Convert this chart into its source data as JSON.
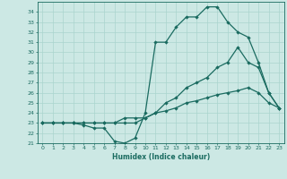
{
  "xlabel": "Humidex (Indice chaleur)",
  "background_color": "#cce8e4",
  "grid_color": "#aad4ce",
  "line_color": "#1a6b60",
  "xlim": [
    -0.5,
    23.5
  ],
  "ylim": [
    21,
    35
  ],
  "xticks": [
    0,
    1,
    2,
    3,
    4,
    5,
    6,
    7,
    8,
    9,
    10,
    11,
    12,
    13,
    14,
    15,
    16,
    17,
    18,
    19,
    20,
    21,
    22,
    23
  ],
  "yticks": [
    21,
    22,
    23,
    24,
    25,
    26,
    27,
    28,
    29,
    30,
    31,
    32,
    33,
    34
  ],
  "line1_x": [
    0,
    1,
    2,
    3,
    4,
    5,
    6,
    7,
    8,
    9,
    10,
    11,
    12,
    13,
    14,
    15,
    16,
    17,
    18,
    19,
    20,
    21,
    22,
    23
  ],
  "line1_y": [
    23.0,
    23.0,
    23.0,
    23.0,
    23.0,
    23.0,
    23.0,
    23.0,
    23.0,
    23.0,
    23.5,
    24.0,
    24.2,
    24.5,
    25.0,
    25.2,
    25.5,
    25.8,
    26.0,
    26.2,
    26.5,
    26.0,
    25.0,
    24.5
  ],
  "line2_x": [
    0,
    1,
    2,
    3,
    4,
    5,
    6,
    7,
    8,
    9,
    10,
    11,
    12,
    13,
    14,
    15,
    16,
    17,
    18,
    19,
    20,
    21,
    22,
    23
  ],
  "line2_y": [
    23.0,
    23.0,
    23.0,
    23.0,
    23.0,
    23.0,
    23.0,
    23.0,
    23.5,
    23.5,
    23.5,
    24.0,
    25.0,
    25.5,
    26.5,
    27.0,
    27.5,
    28.5,
    29.0,
    30.5,
    29.0,
    28.5,
    26.0,
    24.5
  ],
  "line3_x": [
    0,
    1,
    2,
    3,
    4,
    5,
    6,
    7,
    8,
    9,
    10,
    11,
    12,
    13,
    14,
    15,
    16,
    17,
    18,
    19,
    20,
    21,
    22,
    23
  ],
  "line3_y": [
    23.0,
    23.0,
    23.0,
    23.0,
    22.8,
    22.5,
    22.5,
    21.2,
    21.0,
    21.5,
    24.0,
    31.0,
    31.0,
    32.5,
    33.5,
    33.5,
    34.5,
    34.5,
    33.0,
    32.0,
    31.5,
    29.0,
    26.0,
    24.5
  ],
  "markersize": 2.2,
  "linewidth": 0.9
}
